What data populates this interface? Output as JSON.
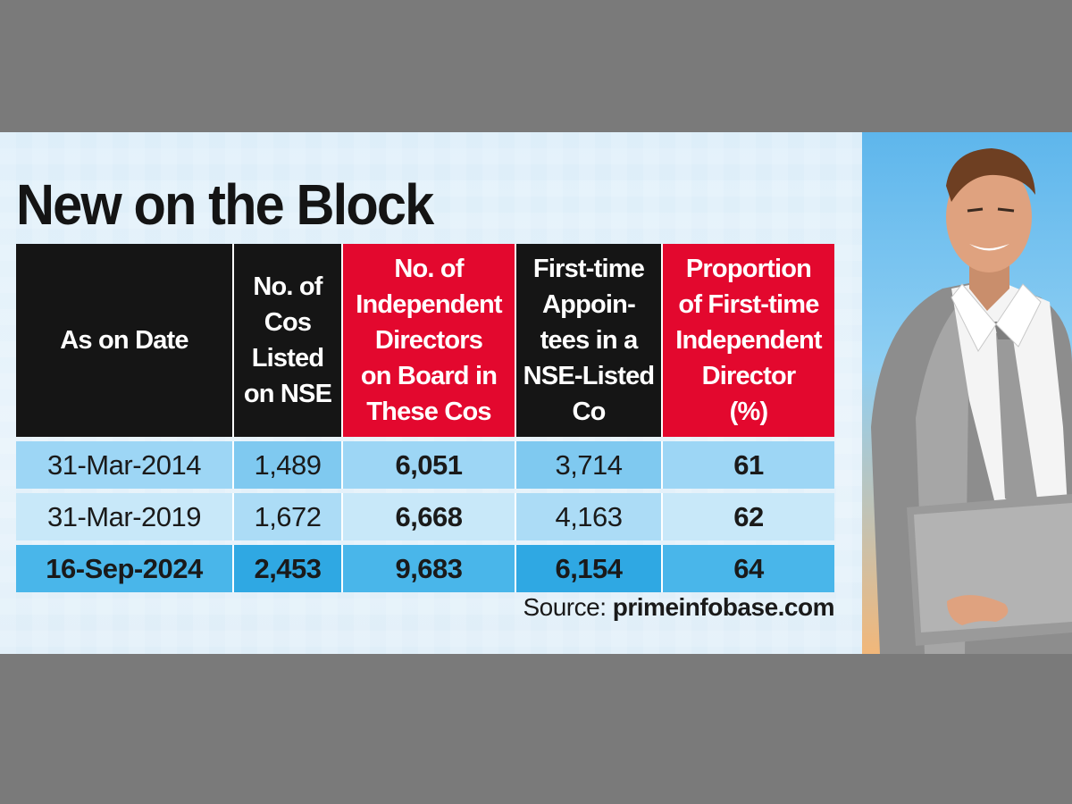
{
  "title": "New on the Block",
  "source": {
    "label": "Source:",
    "value": "primeinfobase.com"
  },
  "chart_data": {
    "type": "table",
    "columns": [
      "As on Date",
      "No. of\nCos\nListed\non NSE",
      "No. of\nIndependent\nDirectors\non Board in\nThese Cos",
      "First-time\nAppoin-\ntees in a\nNSE-Listed\nCo",
      "Proportion\nof First-time\nIndependent\nDirector\n(%)"
    ],
    "rows": [
      [
        "31-Mar-2014",
        "1,489",
        "6,051",
        "3,714",
        "61"
      ],
      [
        "31-Mar-2019",
        "1,672",
        "6,668",
        "4,163",
        "62"
      ],
      [
        "16-Sep-2024",
        "2,453",
        "9,683",
        "6,154",
        "64"
      ]
    ]
  },
  "colors": {
    "header_dark": "#151515",
    "header_red": "#e3082e",
    "row_light": "#c8e8f9",
    "row_mid": "#9dd6f5",
    "row_highlight": "#49b6ea",
    "frame": "#7a7a7a"
  },
  "illustration": {
    "icon": "businessman-with-laptop-illustration"
  }
}
